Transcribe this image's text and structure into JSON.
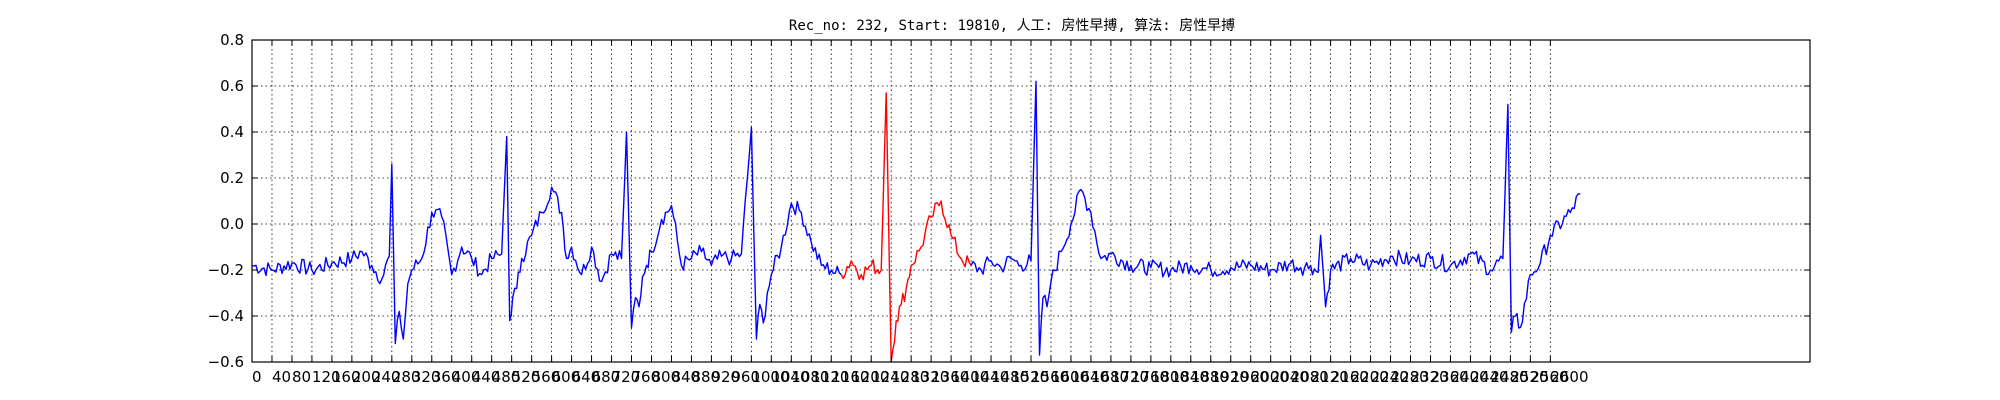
{
  "chart_data": {
    "type": "line",
    "title": "Rec_no: 232, Start: 19810, 人工: 房性早搏, 算法: 房性早搏",
    "xlabel": "",
    "ylabel": "",
    "xlim": [
      0,
      3120
    ],
    "ylim": [
      -0.6,
      0.8
    ],
    "grid": true,
    "y_ticks": [
      -0.6,
      -0.4,
      -0.2,
      0.0,
      0.2,
      0.4,
      0.6,
      0.8
    ],
    "y_tick_labels": [
      "−0.6",
      "−0.4",
      "−0.2",
      "0.0",
      "0.2",
      "0.4",
      "0.6",
      "0.8"
    ],
    "x_ticks": [
      0,
      40,
      80,
      120,
      160,
      200,
      240,
      280,
      320,
      360,
      400,
      440,
      480,
      520,
      560,
      600,
      640,
      680,
      720,
      760,
      800,
      840,
      880,
      920,
      960,
      1000,
      1040,
      1080,
      1120,
      1160,
      1200,
      1240,
      1280,
      1320,
      1360,
      1400,
      1440,
      1480,
      1520,
      1560,
      1600,
      1640,
      1680,
      1720,
      1760,
      1800,
      1840,
      1880,
      1920,
      1960,
      2000,
      2040,
      2080,
      2120,
      2160,
      2200,
      2240,
      2280,
      2320,
      2360,
      2400,
      2440,
      2480,
      2520,
      2560,
      2600
    ],
    "x_tick_labels": [
      "0",
      "40",
      "80",
      "120",
      "160",
      "200",
      "240",
      "280",
      "320",
      "360",
      "400",
      "440",
      "480",
      "520",
      "560",
      "600",
      "640",
      "680",
      "720",
      "760",
      "800",
      "840",
      "880",
      "920",
      "960",
      "1000",
      "1040",
      "1080",
      "1120",
      "1160",
      "1200",
      "1240",
      "1280",
      "1320",
      "1360",
      "1400",
      "1440",
      "1480",
      "1520",
      "1560",
      "1600",
      "1640",
      "1680",
      "1720",
      "1760",
      "1800",
      "1840",
      "1880",
      "1920",
      "1960",
      "2000",
      "2040",
      "2080",
      "2120",
      "2160",
      "2200",
      "2240",
      "2280",
      "2320",
      "2360",
      "2400",
      "2440",
      "2480",
      "2520",
      "2560",
      "2600"
    ],
    "highlight_range": [
      1180,
      1440
    ],
    "series": [
      {
        "color": "#0000ff",
        "x": [
          0,
          40,
          80,
          120,
          160,
          200,
          220,
          240,
          260,
          275,
          280,
          287,
          295,
          303,
          312,
          320,
          340,
          360,
          380,
          400,
          420,
          440,
          460,
          480,
          500,
          510,
          516,
          522,
          530,
          540,
          560,
          580,
          600,
          620,
          630,
          640,
          660,
          680,
          700,
          720,
          740,
          750,
          760,
          768,
          775,
          782,
          790,
          800,
          820,
          840,
          860,
          880,
          900,
          920,
          940,
          960,
          980,
          1000,
          1010,
          1017,
          1024,
          1032,
          1040,
          1060,
          1080,
          1100,
          1120,
          1140,
          1160,
          1180
        ],
        "y": [
          -0.18,
          -0.2,
          -0.17,
          -0.2,
          -0.17,
          -0.15,
          -0.12,
          -0.18,
          -0.24,
          -0.14,
          0.26,
          -0.52,
          -0.38,
          -0.5,
          -0.26,
          -0.2,
          -0.15,
          0.05,
          0.03,
          -0.22,
          -0.1,
          -0.15,
          -0.22,
          -0.15,
          -0.13,
          0.38,
          -0.42,
          -0.32,
          -0.28,
          -0.15,
          -0.05,
          0.05,
          0.16,
          0.05,
          -0.15,
          -0.1,
          -0.22,
          -0.1,
          -0.25,
          -0.13,
          -0.15,
          0.4,
          -0.45,
          -0.32,
          -0.36,
          -0.23,
          -0.18,
          -0.12,
          0.02,
          0.08,
          -0.18,
          -0.15,
          -0.12,
          -0.18,
          -0.14,
          -0.15,
          -0.13,
          0.42,
          -0.5,
          -0.35,
          -0.43,
          -0.3,
          -0.22,
          -0.1,
          0.09,
          0.05,
          -0.08,
          -0.18,
          -0.2,
          -0.22
        ]
      },
      {
        "color": "#ff0000",
        "x": [
          1180,
          1200,
          1220,
          1240,
          1260,
          1270,
          1280,
          1290,
          1300,
          1310,
          1320,
          1340,
          1360,
          1380,
          1400,
          1420,
          1440
        ],
        "y": [
          -0.22,
          -0.16,
          -0.22,
          -0.18,
          -0.2,
          0.57,
          -0.6,
          -0.42,
          -0.35,
          -0.28,
          -0.18,
          -0.1,
          0.03,
          0.1,
          -0.05,
          -0.15,
          -0.18
        ]
      },
      {
        "color": "#0000ff",
        "x": [
          1440,
          1460,
          1480,
          1500,
          1520,
          1540,
          1560,
          1570,
          1577,
          1584,
          1592,
          1600,
          1620,
          1640,
          1660,
          1680,
          1700,
          1720,
          1760,
          1800,
          1840,
          1880,
          1920,
          1960,
          2000,
          2040,
          2080,
          2100,
          2120,
          2135,
          2140,
          2150,
          2160,
          2200,
          2240,
          2280,
          2320,
          2360,
          2400,
          2440,
          2480,
          2505,
          2515,
          2522,
          2530,
          2540,
          2560,
          2580,
          2600,
          2640,
          2660
        ],
        "y": [
          -0.18,
          -0.2,
          -0.16,
          -0.19,
          -0.15,
          -0.18,
          -0.16,
          0.62,
          -0.57,
          -0.32,
          -0.36,
          -0.25,
          -0.12,
          0.0,
          0.15,
          0.05,
          -0.15,
          -0.13,
          -0.18,
          -0.19,
          -0.2,
          -0.18,
          -0.2,
          -0.19,
          -0.18,
          -0.2,
          -0.17,
          -0.19,
          -0.18,
          -0.21,
          -0.05,
          -0.36,
          -0.2,
          -0.15,
          -0.18,
          -0.14,
          -0.16,
          -0.15,
          -0.18,
          -0.13,
          -0.2,
          -0.15,
          0.52,
          -0.47,
          -0.4,
          -0.45,
          -0.22,
          -0.17,
          -0.05,
          0.05,
          0.13
        ]
      }
    ]
  }
}
